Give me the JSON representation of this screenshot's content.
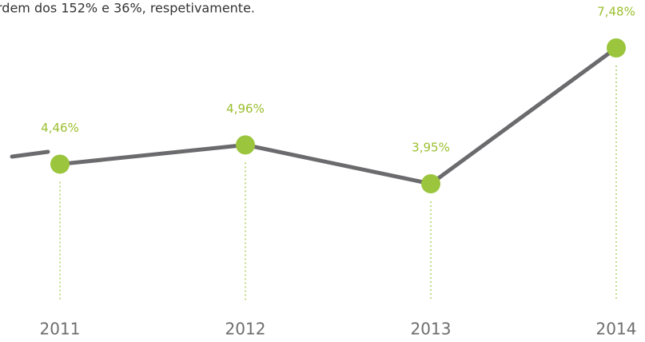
{
  "chart_data": {
    "type": "line",
    "caption": "rdem dos 152% e 36%, respetivamente.",
    "categories": [
      "2011",
      "2012",
      "2013",
      "2014"
    ],
    "values": [
      4.46,
      4.96,
      3.95,
      7.48
    ],
    "value_labels": [
      "4,46%",
      "4,96%",
      "3,95%",
      "7,48%"
    ],
    "color": "#6b6b6e",
    "marker_color": "#9bc53d"
  }
}
